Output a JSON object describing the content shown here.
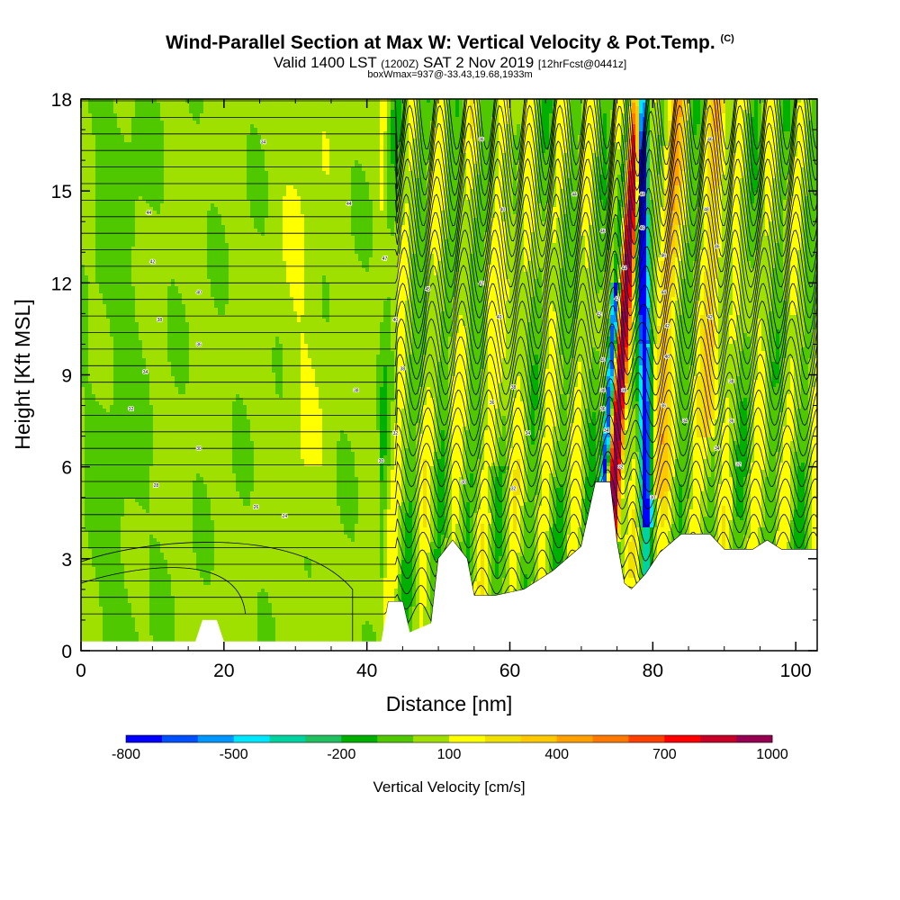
{
  "header": {
    "title": "Wind-Parallel Section at Max W: Vertical Velocity & Pot.Temp.",
    "title_mark": "(C)",
    "valid_prefix": "Valid 1400 LST",
    "valid_utc": "(1200Z)",
    "valid_date": "SAT 2 Nov 2019",
    "forecast": "[12hrFcst@0441z]",
    "note": "boxWmax=937@-33.43,19.68,1933m"
  },
  "chart_data": {
    "type": "heatmap",
    "xlabel": "Distance [nm]",
    "ylabel": "Height [Kft MSL]",
    "xlim": [
      0,
      103
    ],
    "ylim": [
      0,
      18
    ],
    "x_ticks": [
      0,
      20,
      40,
      60,
      80,
      100
    ],
    "y_ticks": [
      0,
      3,
      6,
      9,
      12,
      15,
      18
    ],
    "colorbar": {
      "title": "Vertical Velocity [cm/s]",
      "min": -800,
      "max": 1000,
      "step": 100,
      "tick_values": [
        -800,
        -500,
        -200,
        100,
        400,
        700,
        1000
      ],
      "colors": [
        "#0000ff",
        "#0050ff",
        "#0096ff",
        "#00e6ff",
        "#00d2a0",
        "#20c060",
        "#00b000",
        "#50c800",
        "#a0e000",
        "#ffff00",
        "#f0e000",
        "#ffc800",
        "#ffa000",
        "#ff7800",
        "#ff4000",
        "#ff0000",
        "#c80028",
        "#960050"
      ]
    },
    "terrain_kft": [
      [
        0,
        0.3
      ],
      [
        16,
        0.3
      ],
      [
        17,
        1.0
      ],
      [
        19,
        1.0
      ],
      [
        20,
        0.3
      ],
      [
        28,
        0.3
      ],
      [
        30,
        0.3
      ],
      [
        42,
        0.3
      ],
      [
        43,
        1.6
      ],
      [
        45,
        1.6
      ],
      [
        46,
        0.6
      ],
      [
        49,
        0.9
      ],
      [
        50,
        3.0
      ],
      [
        52,
        3.6
      ],
      [
        54,
        3.0
      ],
      [
        55,
        1.8
      ],
      [
        58,
        1.8
      ],
      [
        62,
        2.0
      ],
      [
        66,
        2.6
      ],
      [
        70,
        3.4
      ],
      [
        72,
        5.5
      ],
      [
        74,
        5.5
      ],
      [
        75,
        3.5
      ],
      [
        76,
        2.2
      ],
      [
        77,
        2.0
      ],
      [
        79,
        2.5
      ],
      [
        81,
        3.2
      ],
      [
        84,
        3.8
      ],
      [
        88,
        3.8
      ],
      [
        90,
        3.3
      ],
      [
        94,
        3.3
      ],
      [
        96,
        3.6
      ],
      [
        98,
        3.3
      ],
      [
        103,
        3.3
      ]
    ],
    "isentrope_labels": [
      {
        "x": 25.5,
        "y": 16.6,
        "text": "34"
      },
      {
        "x": 9.5,
        "y": 14.3,
        "text": "44"
      },
      {
        "x": 37.5,
        "y": 14.6,
        "text": "44"
      },
      {
        "x": 42.5,
        "y": 12.8,
        "text": "47"
      },
      {
        "x": 10.0,
        "y": 12.7,
        "text": "42"
      },
      {
        "x": 16.5,
        "y": 11.7,
        "text": "40"
      },
      {
        "x": 48.5,
        "y": 11.8,
        "text": "45"
      },
      {
        "x": 11.0,
        "y": 10.8,
        "text": "38"
      },
      {
        "x": 16.5,
        "y": 10.0,
        "text": "36"
      },
      {
        "x": 44.0,
        "y": 10.8,
        "text": "40"
      },
      {
        "x": 9.0,
        "y": 9.1,
        "text": "34"
      },
      {
        "x": 7.0,
        "y": 7.9,
        "text": "32"
      },
      {
        "x": 38.5,
        "y": 8.5,
        "text": "38"
      },
      {
        "x": 45.0,
        "y": 9.2,
        "text": "38"
      },
      {
        "x": 16.5,
        "y": 6.6,
        "text": "30"
      },
      {
        "x": 44.0,
        "y": 7.1,
        "text": "32"
      },
      {
        "x": 42.0,
        "y": 6.2,
        "text": "30"
      },
      {
        "x": 10.5,
        "y": 5.4,
        "text": "28"
      },
      {
        "x": 24.5,
        "y": 4.7,
        "text": "26"
      },
      {
        "x": 28.5,
        "y": 4.4,
        "text": "24"
      },
      {
        "x": 56.0,
        "y": 16.7,
        "text": "36"
      },
      {
        "x": 59.0,
        "y": 14.4,
        "text": "40"
      },
      {
        "x": 69.0,
        "y": 14.9,
        "text": "44"
      },
      {
        "x": 56.0,
        "y": 12.0,
        "text": "42"
      },
      {
        "x": 58.5,
        "y": 10.9,
        "text": "40"
      },
      {
        "x": 57.5,
        "y": 8.1,
        "text": "36"
      },
      {
        "x": 60.5,
        "y": 8.6,
        "text": "38"
      },
      {
        "x": 62.5,
        "y": 7.1,
        "text": "34"
      },
      {
        "x": 53.5,
        "y": 5.5,
        "text": "30"
      },
      {
        "x": 60.5,
        "y": 5.3,
        "text": "32"
      },
      {
        "x": 73.0,
        "y": 13.7,
        "text": "46"
      },
      {
        "x": 76.0,
        "y": 12.5,
        "text": "44"
      },
      {
        "x": 75.0,
        "y": 11.5,
        "text": "42"
      },
      {
        "x": 72.5,
        "y": 11.0,
        "text": "42"
      },
      {
        "x": 73.0,
        "y": 9.5,
        "text": "40"
      },
      {
        "x": 73.0,
        "y": 8.5,
        "text": "38"
      },
      {
        "x": 73.0,
        "y": 7.9,
        "text": "36"
      },
      {
        "x": 73.5,
        "y": 7.2,
        "text": "34"
      },
      {
        "x": 76.0,
        "y": 8.5,
        "text": "38"
      },
      {
        "x": 78.5,
        "y": 14.9,
        "text": "48"
      },
      {
        "x": 78.5,
        "y": 13.8,
        "text": "46"
      },
      {
        "x": 81.5,
        "y": 12.9,
        "text": "46"
      },
      {
        "x": 81.5,
        "y": 11.7,
        "text": "44"
      },
      {
        "x": 82.0,
        "y": 10.6,
        "text": "42"
      },
      {
        "x": 82.0,
        "y": 9.6,
        "text": "40"
      },
      {
        "x": 81.5,
        "y": 8.0,
        "text": "36"
      },
      {
        "x": 84.5,
        "y": 7.5,
        "text": "34"
      },
      {
        "x": 75.5,
        "y": 6.0,
        "text": "32"
      },
      {
        "x": 80.0,
        "y": 5.0,
        "text": "30"
      },
      {
        "x": 88.0,
        "y": 16.7,
        "text": "46"
      },
      {
        "x": 87.5,
        "y": 14.4,
        "text": "48"
      },
      {
        "x": 89.0,
        "y": 13.2,
        "text": "46"
      },
      {
        "x": 88.0,
        "y": 10.9,
        "text": "42"
      },
      {
        "x": 91.0,
        "y": 8.8,
        "text": "38"
      },
      {
        "x": 91.0,
        "y": 7.5,
        "text": "36"
      },
      {
        "x": 89.0,
        "y": 6.6,
        "text": "34"
      },
      {
        "x": 92.0,
        "y": 6.1,
        "text": "32"
      }
    ]
  }
}
